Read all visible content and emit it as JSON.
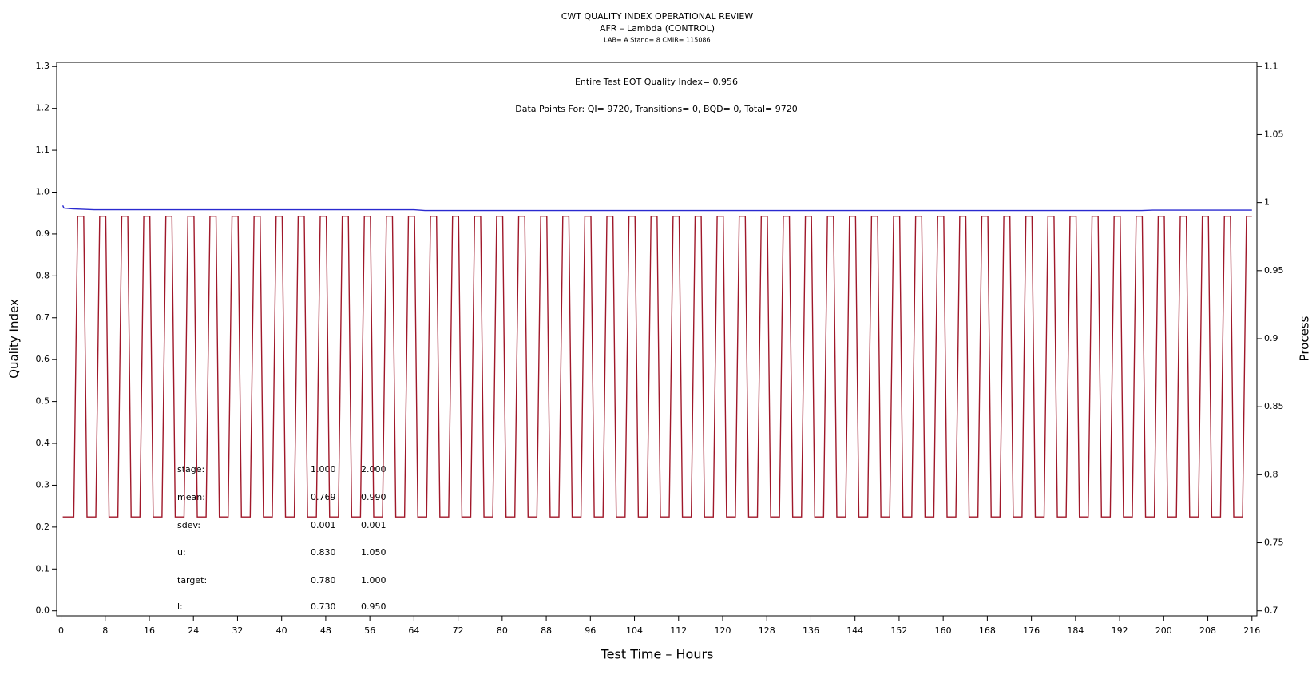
{
  "chart_data": {
    "type": "line",
    "title": "CWT QUALITY INDEX OPERATIONAL REVIEW",
    "subtitle": "AFR – Lambda (CONTROL)",
    "subtitle2": "LAB= A Stand= 8 CMIR= 115086",
    "xlabel": "Test Time – Hours",
    "ylabel": "Quality Index",
    "y2label": "Process",
    "annotations": [
      "Entire Test EOT Quality Index=   0.956",
      "Data Points For: QI=  9720, Transitions=     0, BQD=     0, Total=  9720"
    ],
    "stats_table": {
      "labels": [
        "stage:",
        "mean:",
        "sdev:",
        "u:",
        "target:",
        "l:"
      ],
      "columns": [
        [
          "1.000",
          "0.769",
          "0.001",
          "0.830",
          "0.780",
          "0.730"
        ],
        [
          "2.000",
          "0.990",
          "0.001",
          "1.050",
          "1.000",
          "0.950"
        ]
      ]
    },
    "xlim": [
      -0.8,
      216.9
    ],
    "xticks": [
      0,
      8,
      16,
      24,
      32,
      40,
      48,
      56,
      64,
      72,
      80,
      88,
      96,
      104,
      112,
      120,
      128,
      136,
      144,
      152,
      160,
      168,
      176,
      184,
      192,
      200,
      208,
      216
    ],
    "ylim": [
      -0.012,
      1.31
    ],
    "yticks": [
      {
        "value": 0,
        "label": "0.0"
      },
      0.1,
      0.2,
      0.3,
      0.4,
      0.5,
      0.6,
      0.7,
      0.8,
      0.9,
      {
        "value": 1,
        "label": "1.0"
      },
      1.1,
      1.2,
      1.3
    ],
    "y2lim": [
      0.6963,
      1.1031
    ],
    "y2ticks": [
      0.7,
      0.75,
      0.8,
      0.85,
      0.9,
      0.95,
      1,
      1.05,
      1.1
    ],
    "grid": false,
    "series": [
      {
        "name": "Quality Index",
        "color": "#2a2ad0",
        "axis": "y",
        "x": [
          0.3,
          0.5,
          2,
          6,
          64,
          66,
          196,
          198,
          216
        ],
        "values": [
          0.968,
          0.962,
          0.96,
          0.958,
          0.958,
          0.956,
          0.956,
          0.957,
          0.957
        ]
      },
      {
        "name": "Process",
        "color": "#a0182a",
        "axis": "y2",
        "x": [
          0.3,
          2.3,
          3,
          4.1,
          4.7,
          6.3,
          7,
          8.1,
          8.7,
          10.3,
          11,
          12.1,
          12.7,
          14.3,
          15,
          16.1,
          16.7,
          18.3,
          19,
          20.1,
          20.7,
          22.3,
          23,
          24.1,
          24.7,
          26.3,
          27,
          28.1,
          28.7,
          30.3,
          31,
          32.1,
          32.7,
          34.3,
          35,
          36.1,
          36.7,
          38.3,
          39,
          40.1,
          40.7,
          42.3,
          43,
          44.1,
          44.7,
          46.3,
          47,
          48.1,
          48.7,
          50.3,
          51,
          52.1,
          52.7,
          54.3,
          55,
          56.1,
          56.7,
          58.3,
          59,
          60.1,
          60.7,
          62.3,
          63,
          64.1,
          64.7,
          66.3,
          67,
          68.1,
          68.7,
          70.3,
          71,
          72.1,
          72.7,
          74.3,
          75,
          76.1,
          76.7,
          78.3,
          79,
          80.1,
          80.7,
          82.3,
          83,
          84.1,
          84.7,
          86.3,
          87,
          88.1,
          88.7,
          90.3,
          91,
          92.1,
          92.7,
          94.3,
          95,
          96.1,
          96.7,
          98.3,
          99,
          100.1,
          100.7,
          102.3,
          103,
          104.1,
          104.7,
          106.3,
          107,
          108.1,
          108.7,
          110.3,
          111,
          112.1,
          112.7,
          114.3,
          115,
          116.1,
          116.7,
          118.3,
          119,
          120.1,
          120.7,
          122.3,
          123,
          124.1,
          124.7,
          126.3,
          127,
          128.1,
          128.7,
          130.3,
          131,
          132.1,
          132.7,
          134.3,
          135,
          136.1,
          136.7,
          138.3,
          139,
          140.1,
          140.7,
          142.3,
          143,
          144.1,
          144.7,
          146.3,
          147,
          148.1,
          148.7,
          150.3,
          151,
          152.1,
          152.7,
          154.3,
          155,
          156.1,
          156.7,
          158.3,
          159,
          160.1,
          160.7,
          162.3,
          163,
          164.1,
          164.7,
          166.3,
          167,
          168.1,
          168.7,
          170.3,
          171,
          172.1,
          172.7,
          174.3,
          175,
          176.1,
          176.7,
          178.3,
          179,
          180.1,
          180.7,
          182.3,
          183,
          184.1,
          184.7,
          186.3,
          187,
          188.1,
          188.7,
          190.3,
          191,
          192.1,
          192.7,
          194.3,
          195,
          196.1,
          196.7,
          198.3,
          199,
          200.1,
          200.7,
          202.3,
          203,
          204.1,
          204.7,
          206.3,
          207,
          208.1,
          208.7,
          210.3,
          211,
          212.1,
          212.7,
          214.3,
          215,
          216
        ],
        "values": [
          0.769,
          0.769,
          0.99,
          0.99,
          0.769,
          0.769,
          0.99,
          0.99,
          0.769,
          0.769,
          0.99,
          0.99,
          0.769,
          0.769,
          0.99,
          0.99,
          0.769,
          0.769,
          0.99,
          0.99,
          0.769,
          0.769,
          0.99,
          0.99,
          0.769,
          0.769,
          0.99,
          0.99,
          0.769,
          0.769,
          0.99,
          0.99,
          0.769,
          0.769,
          0.99,
          0.99,
          0.769,
          0.769,
          0.99,
          0.99,
          0.769,
          0.769,
          0.99,
          0.99,
          0.769,
          0.769,
          0.99,
          0.99,
          0.769,
          0.769,
          0.99,
          0.99,
          0.769,
          0.769,
          0.99,
          0.99,
          0.769,
          0.769,
          0.99,
          0.99,
          0.769,
          0.769,
          0.99,
          0.99,
          0.769,
          0.769,
          0.99,
          0.99,
          0.769,
          0.769,
          0.99,
          0.99,
          0.769,
          0.769,
          0.99,
          0.99,
          0.769,
          0.769,
          0.99,
          0.99,
          0.769,
          0.769,
          0.99,
          0.99,
          0.769,
          0.769,
          0.99,
          0.99,
          0.769,
          0.769,
          0.99,
          0.99,
          0.769,
          0.769,
          0.99,
          0.99,
          0.769,
          0.769,
          0.99,
          0.99,
          0.769,
          0.769,
          0.99,
          0.99,
          0.769,
          0.769,
          0.99,
          0.99,
          0.769,
          0.769,
          0.99,
          0.99,
          0.769,
          0.769,
          0.99,
          0.99,
          0.769,
          0.769,
          0.99,
          0.99,
          0.769,
          0.769,
          0.99,
          0.99,
          0.769,
          0.769,
          0.99,
          0.99,
          0.769,
          0.769,
          0.99,
          0.99,
          0.769,
          0.769,
          0.99,
          0.99,
          0.769,
          0.769,
          0.99,
          0.99,
          0.769,
          0.769,
          0.99,
          0.99,
          0.769,
          0.769,
          0.99,
          0.99,
          0.769,
          0.769,
          0.99,
          0.99,
          0.769,
          0.769,
          0.99,
          0.99,
          0.769,
          0.769,
          0.99,
          0.99,
          0.769,
          0.769,
          0.99,
          0.99,
          0.769,
          0.769,
          0.99,
          0.99,
          0.769,
          0.769,
          0.99,
          0.99,
          0.769,
          0.769,
          0.99,
          0.99,
          0.769,
          0.769,
          0.99,
          0.99,
          0.769,
          0.769,
          0.99,
          0.99,
          0.769,
          0.769,
          0.99,
          0.99,
          0.769,
          0.769,
          0.99,
          0.99,
          0.769,
          0.769,
          0.99,
          0.99,
          0.769,
          0.769,
          0.99,
          0.99,
          0.769,
          0.769,
          0.99,
          0.99,
          0.769,
          0.769,
          0.99,
          0.99,
          0.769,
          0.769,
          0.99,
          0.99,
          0.769,
          0.769,
          0.99,
          0.99
        ]
      }
    ]
  }
}
